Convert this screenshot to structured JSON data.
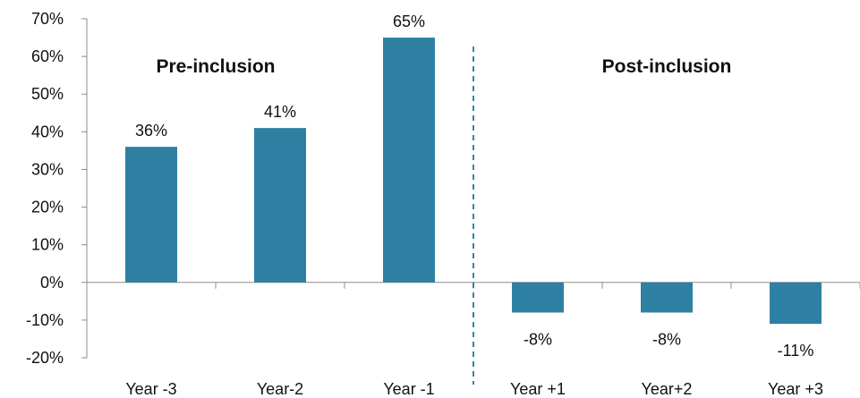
{
  "chart_data": {
    "type": "bar",
    "categories": [
      "Year -3",
      "Year-2",
      "Year -1",
      "Year +1",
      "Year+2",
      "Year +3"
    ],
    "values": [
      36,
      41,
      65,
      -8,
      -8,
      -11
    ],
    "data_labels": [
      "36%",
      "41%",
      "65%",
      "-8%",
      "-8%",
      "-11%"
    ],
    "ylim": [
      -20,
      70
    ],
    "yticks": [
      70,
      60,
      50,
      40,
      30,
      20,
      10,
      0,
      -10,
      -20
    ],
    "ytick_labels": [
      "70%",
      "60%",
      "50%",
      "40%",
      "30%",
      "20%",
      "10%",
      "0%",
      "-10%",
      "-20%"
    ],
    "annotations": [
      "Pre-inclusion",
      "Post-inclusion"
    ],
    "divider_after_category": "Year -1",
    "grid": false,
    "legend": "none",
    "bar_color": "#2e80a3",
    "divider_color": "#2e86a8"
  }
}
